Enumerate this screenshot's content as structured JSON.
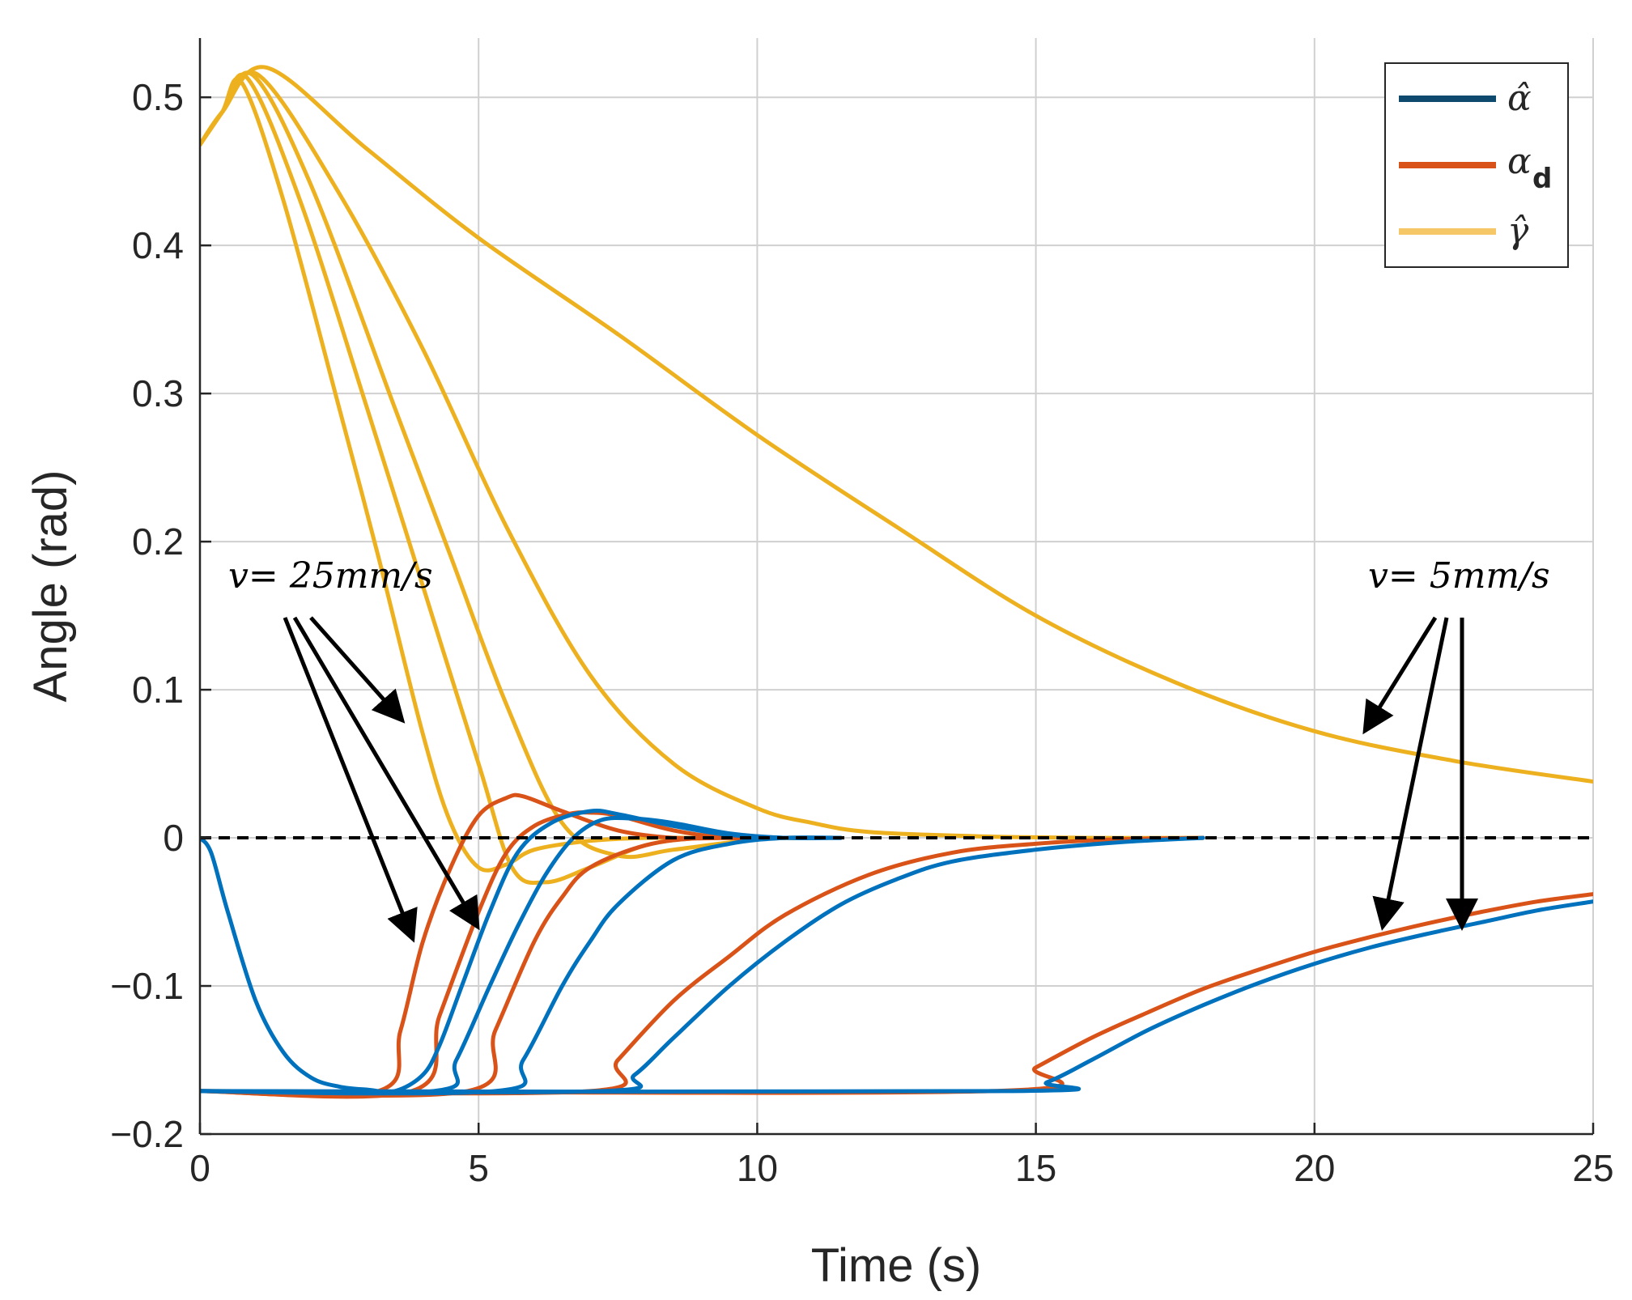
{
  "chart_data": {
    "type": "line",
    "xlabel": "Time (s)",
    "ylabel": "Angle (rad)",
    "xlim": [
      0,
      25
    ],
    "ylim": [
      -0.2,
      0.54
    ],
    "grid": true,
    "x_ticks": [
      "0",
      "5",
      "10",
      "15",
      "20",
      "25"
    ],
    "y_ticks": [
      "−0.2",
      "−0.1",
      "0",
      "0.1",
      "0.2",
      "0.3",
      "0.4",
      "0.5"
    ],
    "legend": {
      "placement": "top-right",
      "entries": [
        {
          "label": "α̂",
          "color": "#0e4a6e"
        },
        {
          "label": "α",
          "sub": "d",
          "color": "#d95319"
        },
        {
          "label": "γ̂",
          "color": "#f5c766"
        }
      ]
    },
    "colors": {
      "alpha_hat": "#0072bd",
      "alpha_d": "#d95319",
      "gamma_hat": "#edb120"
    },
    "reference_line": {
      "y": 0,
      "style": "dashed",
      "color": "#000000"
    },
    "annotations": [
      {
        "text": "v= 25mm/s",
        "placement": "left"
      },
      {
        "text": "v= 5mm/s",
        "placement": "right"
      }
    ],
    "series": [
      {
        "group": "gamma_hat",
        "x": [
          0,
          0.4,
          0.75,
          1.5,
          2.5,
          3.2,
          4.0,
          4.5,
          5.0,
          5.5,
          6.0,
          7.0,
          8.0,
          9.0,
          10.0
        ],
        "y": [
          0.468,
          0.49,
          0.51,
          0.43,
          0.29,
          0.19,
          0.07,
          0.01,
          -0.02,
          -0.018,
          -0.008,
          -0.002,
          0,
          0,
          0
        ]
      },
      {
        "group": "gamma_hat",
        "x": [
          0,
          0.4,
          0.85,
          1.8,
          3.0,
          4.0,
          5.0,
          5.6,
          6.2,
          7.0,
          8.0,
          9.0,
          10.0
        ],
        "y": [
          0.468,
          0.49,
          0.513,
          0.43,
          0.29,
          0.17,
          0.05,
          -0.02,
          -0.03,
          -0.02,
          -0.005,
          0,
          0
        ]
      },
      {
        "group": "gamma_hat",
        "x": [
          0,
          0.4,
          0.95,
          2.0,
          3.5,
          4.5,
          5.5,
          6.5,
          7.5,
          8.5,
          10.0,
          11.0
        ],
        "y": [
          0.468,
          0.49,
          0.515,
          0.44,
          0.29,
          0.19,
          0.09,
          0.01,
          -0.012,
          -0.008,
          -0.001,
          0
        ]
      },
      {
        "group": "gamma_hat",
        "x": [
          0,
          0.4,
          1.05,
          2.5,
          4.0,
          5.5,
          7.0,
          8.5,
          10.0,
          11.0,
          12.0,
          14.0,
          16.0,
          18.0
        ],
        "y": [
          0.468,
          0.49,
          0.515,
          0.435,
          0.33,
          0.21,
          0.11,
          0.05,
          0.02,
          0.01,
          0.004,
          0.001,
          0,
          0
        ]
      },
      {
        "group": "gamma_hat",
        "x": [
          0,
          0.4,
          1.2,
          3.0,
          5.0,
          7.5,
          10.0,
          12.5,
          15.0,
          17.5,
          20.0,
          22.5,
          25.0
        ],
        "y": [
          0.468,
          0.49,
          0.52,
          0.465,
          0.405,
          0.34,
          0.272,
          0.21,
          0.15,
          0.105,
          0.072,
          0.052,
          0.038
        ]
      },
      {
        "group": "alpha_d",
        "x": [
          0,
          3.2,
          3.6,
          4.0,
          4.5,
          5.0,
          5.5,
          5.8,
          6.5,
          7.5,
          8.5,
          9.5
        ],
        "y": [
          -0.171,
          -0.171,
          -0.13,
          -0.07,
          -0.02,
          0.015,
          0.027,
          0.028,
          0.018,
          0.005,
          0,
          0
        ]
      },
      {
        "group": "alpha_d",
        "x": [
          0,
          3.8,
          4.3,
          5.0,
          5.5,
          6.0,
          6.6,
          7.0,
          7.5,
          8.5,
          9.5,
          10.5
        ],
        "y": [
          -0.171,
          -0.171,
          -0.12,
          -0.05,
          -0.01,
          0.008,
          0.016,
          0.017,
          0.015,
          0.005,
          0,
          0
        ]
      },
      {
        "group": "alpha_d",
        "x": [
          0,
          4.8,
          5.3,
          6.0,
          6.5,
          7.0,
          8.0,
          9.0,
          10.0,
          11.0
        ],
        "y": [
          -0.171,
          -0.171,
          -0.13,
          -0.07,
          -0.04,
          -0.02,
          -0.005,
          0,
          0,
          0
        ]
      },
      {
        "group": "alpha_d",
        "x": [
          0,
          7.0,
          7.5,
          8.5,
          9.5,
          10.5,
          12.0,
          13.5,
          15.0,
          16.5,
          18.0
        ],
        "y": [
          -0.171,
          -0.171,
          -0.15,
          -0.11,
          -0.08,
          -0.052,
          -0.025,
          -0.01,
          -0.004,
          -0.001,
          0
        ]
      },
      {
        "group": "alpha_d",
        "x": [
          0,
          14.2,
          15.0,
          16.0,
          17.0,
          18.0,
          19.0,
          20.0,
          21.0,
          22.0,
          23.0,
          24.0,
          25.0
        ],
        "y": [
          -0.171,
          -0.171,
          -0.155,
          -0.135,
          -0.118,
          -0.102,
          -0.089,
          -0.077,
          -0.067,
          -0.058,
          -0.05,
          -0.043,
          -0.038
        ]
      },
      {
        "group": "alpha_hat",
        "x": [
          0,
          0.2,
          0.5,
          1.0,
          1.5,
          2.0,
          2.5,
          3.0,
          3.5,
          4.0,
          4.3,
          4.7,
          5.2,
          5.7,
          6.3,
          7.0,
          7.5,
          8.5,
          9.5,
          10.5
        ],
        "y": [
          0,
          -0.01,
          -0.05,
          -0.11,
          -0.145,
          -0.162,
          -0.168,
          -0.17,
          -0.171,
          -0.16,
          -0.14,
          -0.1,
          -0.05,
          -0.01,
          0.01,
          0.018,
          0.016,
          0.008,
          0.002,
          0
        ]
      },
      {
        "group": "alpha_hat",
        "x": [
          0,
          4.2,
          4.6,
          5.2,
          5.7,
          6.2,
          6.7,
          7.2,
          7.8,
          8.5,
          9.5,
          10.5,
          11.5
        ],
        "y": [
          -0.171,
          -0.171,
          -0.15,
          -0.1,
          -0.06,
          -0.025,
          0,
          0.012,
          0.013,
          0.01,
          0.003,
          0,
          0
        ]
      },
      {
        "group": "alpha_hat",
        "x": [
          0,
          5.3,
          5.8,
          6.5,
          7.0,
          7.5,
          8.5,
          9.5,
          10.5,
          11.5
        ],
        "y": [
          -0.171,
          -0.171,
          -0.15,
          -0.1,
          -0.07,
          -0.045,
          -0.015,
          -0.004,
          0,
          0
        ]
      },
      {
        "group": "alpha_hat",
        "x": [
          0,
          7.2,
          7.8,
          8.5,
          9.5,
          10.5,
          11.5,
          12.5,
          13.5,
          15.0,
          16.5,
          18.0
        ],
        "y": [
          -0.171,
          -0.171,
          -0.16,
          -0.135,
          -0.1,
          -0.07,
          -0.045,
          -0.028,
          -0.016,
          -0.008,
          -0.003,
          0
        ]
      },
      {
        "group": "alpha_hat",
        "x": [
          0,
          14.5,
          15.2,
          16.0,
          17.0,
          18.0,
          19.0,
          20.0,
          21.0,
          22.0,
          23.0,
          24.0,
          25.0
        ],
        "y": [
          -0.171,
          -0.171,
          -0.165,
          -0.15,
          -0.13,
          -0.113,
          -0.098,
          -0.085,
          -0.074,
          -0.065,
          -0.057,
          -0.049,
          -0.043
        ]
      }
    ]
  }
}
